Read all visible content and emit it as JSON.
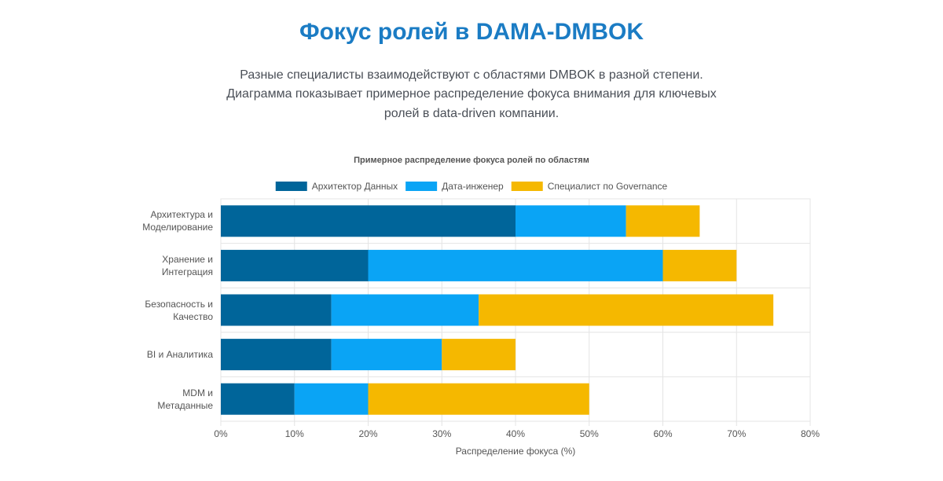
{
  "header": {
    "title": "Фокус ролей в DAMA-DMBOK",
    "description": [
      "Разные специалисты взаимодействуют с областями DMBOK в разной степени.",
      "Диаграмма показывает примерное распределение фокуса внимания для ключевых",
      "ролей в data-driven компании."
    ]
  },
  "chart_data": {
    "type": "stacked-bar-horizontal",
    "title": "Примерное распределение фокуса ролей по областям",
    "x_label": "Распределение фокуса (%)",
    "categories": [
      "Архитектура и Моделирование",
      "Хранение и Интеграция",
      "Безопасность и Качество",
      "BI и Аналитика",
      "MDM и Метаданные"
    ],
    "series": [
      {
        "name": "Архитектор Данных",
        "color": "#00659a",
        "values": [
          40,
          20,
          15,
          15,
          10
        ]
      },
      {
        "name": "Дата-инженер",
        "color": "#0aa4f5",
        "values": [
          15,
          40,
          20,
          15,
          10
        ]
      },
      {
        "name": "Специалист по Governance",
        "color": "#f5b800",
        "values": [
          10,
          10,
          40,
          10,
          30
        ]
      }
    ],
    "xlim": [
      0,
      80
    ],
    "xticks": [
      {
        "value": 0,
        "label": "0%"
      },
      {
        "value": 10,
        "label": "10%"
      },
      {
        "value": 20,
        "label": "20%"
      },
      {
        "value": 30,
        "label": "30%"
      },
      {
        "value": 40,
        "label": "40%"
      },
      {
        "value": 50,
        "label": "50%"
      },
      {
        "value": 60,
        "label": "60%"
      },
      {
        "value": 70,
        "label": "70%"
      },
      {
        "value": 80,
        "label": "80%"
      }
    ],
    "grid": true,
    "legend": "top"
  }
}
